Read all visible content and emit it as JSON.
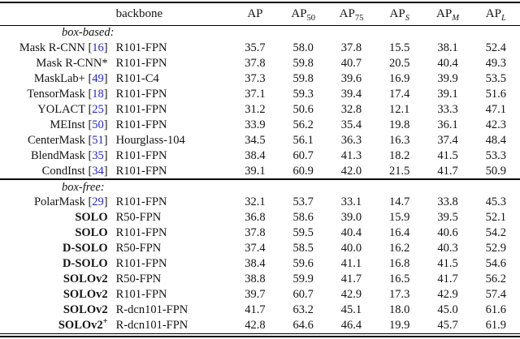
{
  "table": {
    "citation_color": "#2626cc",
    "headers": [
      {
        "label": "",
        "align": "left"
      },
      {
        "label": "backbone",
        "align": "left"
      },
      {
        "base": "AP",
        "sub": "",
        "italic_sub": false
      },
      {
        "base": "AP",
        "sub": "50",
        "italic_sub": false
      },
      {
        "base": "AP",
        "sub": "75",
        "italic_sub": false
      },
      {
        "base": "AP",
        "sub": "S",
        "italic_sub": true
      },
      {
        "base": "AP",
        "sub": "M",
        "italic_sub": true
      },
      {
        "base": "AP",
        "sub": "L",
        "italic_sub": true
      }
    ],
    "sections": [
      {
        "label": "box-based:",
        "rows": [
          {
            "method": "Mask R-CNN",
            "cite": "16",
            "sup": null,
            "bold": false,
            "backbone": "R101-FPN",
            "values": [
              "35.7",
              "58.0",
              "37.8",
              "15.5",
              "38.1",
              "52.4"
            ]
          },
          {
            "method": "Mask R-CNN*",
            "cite": null,
            "sup": null,
            "bold": false,
            "backbone": "R101-FPN",
            "values": [
              "37.8",
              "59.8",
              "40.7",
              "20.5",
              "40.4",
              "49.3"
            ]
          },
          {
            "method": "MaskLab+",
            "cite": "49",
            "sup": null,
            "bold": false,
            "backbone": "R101-C4",
            "values": [
              "37.3",
              "59.8",
              "39.6",
              "16.9",
              "39.9",
              "53.5"
            ]
          },
          {
            "method": "TensorMask",
            "cite": "18",
            "sup": null,
            "bold": false,
            "backbone": "R101-FPN",
            "values": [
              "37.1",
              "59.3",
              "39.4",
              "17.4",
              "39.1",
              "51.6"
            ]
          },
          {
            "method": "YOLACT",
            "cite": "25",
            "sup": null,
            "bold": false,
            "backbone": "R101-FPN",
            "values": [
              "31.2",
              "50.6",
              "32.8",
              "12.1",
              "33.3",
              "47.1"
            ]
          },
          {
            "method": "MEInst",
            "cite": "50",
            "sup": null,
            "bold": false,
            "backbone": "R101-FPN",
            "values": [
              "33.9",
              "56.2",
              "35.4",
              "19.8",
              "36.1",
              "42.3"
            ]
          },
          {
            "method": "CenterMask",
            "cite": "51",
            "sup": null,
            "bold": false,
            "backbone": "Hourglass-104",
            "values": [
              "34.5",
              "56.1",
              "36.3",
              "16.3",
              "37.4",
              "48.4"
            ]
          },
          {
            "method": "BlendMask",
            "cite": "35",
            "sup": null,
            "bold": false,
            "backbone": "R101-FPN",
            "values": [
              "38.4",
              "60.7",
              "41.3",
              "18.2",
              "41.5",
              "53.3"
            ]
          },
          {
            "method": "CondInst",
            "cite": "34",
            "sup": null,
            "bold": false,
            "backbone": "R101-FPN",
            "values": [
              "39.1",
              "60.9",
              "42.0",
              "21.5",
              "41.7",
              "50.9"
            ]
          }
        ]
      },
      {
        "label": "box-free:",
        "rows": [
          {
            "method": "PolarMask",
            "cite": "29",
            "sup": null,
            "bold": false,
            "backbone": "R101-FPN",
            "values": [
              "32.1",
              "53.7",
              "33.1",
              "14.7",
              "33.8",
              "45.3"
            ]
          },
          {
            "method": "SOLO",
            "cite": null,
            "sup": null,
            "bold": true,
            "backbone": "R50-FPN",
            "values": [
              "36.8",
              "58.6",
              "39.0",
              "15.9",
              "39.5",
              "52.1"
            ]
          },
          {
            "method": "SOLO",
            "cite": null,
            "sup": null,
            "bold": true,
            "backbone": "R101-FPN",
            "values": [
              "37.8",
              "59.5",
              "40.4",
              "16.4",
              "40.6",
              "54.2"
            ]
          },
          {
            "method": "D-SOLO",
            "cite": null,
            "sup": null,
            "bold": true,
            "backbone": "R50-FPN",
            "values": [
              "37.4",
              "58.5",
              "40.0",
              "16.2",
              "40.3",
              "52.9"
            ]
          },
          {
            "method": "D-SOLO",
            "cite": null,
            "sup": null,
            "bold": true,
            "backbone": "R101-FPN",
            "values": [
              "38.4",
              "59.6",
              "41.1",
              "16.8",
              "41.5",
              "54.6"
            ]
          },
          {
            "method": "SOLOv2",
            "cite": null,
            "sup": null,
            "bold": true,
            "backbone": "R50-FPN",
            "values": [
              "38.8",
              "59.9",
              "41.7",
              "16.5",
              "41.7",
              "56.2"
            ]
          },
          {
            "method": "SOLOv2",
            "cite": null,
            "sup": null,
            "bold": true,
            "backbone": "R101-FPN",
            "values": [
              "39.7",
              "60.7",
              "42.9",
              "17.3",
              "42.9",
              "57.4"
            ]
          },
          {
            "method": "SOLOv2",
            "cite": null,
            "sup": null,
            "bold": true,
            "backbone": "R-dcn101-FPN",
            "values": [
              "41.7",
              "63.2",
              "45.1",
              "18.0",
              "45.0",
              "61.6"
            ]
          },
          {
            "method": "SOLOv2",
            "cite": null,
            "sup": "+",
            "bold": true,
            "backbone": "R-dcn101-FPN",
            "values": [
              "42.8",
              "64.6",
              "46.4",
              "19.9",
              "45.7",
              "61.9"
            ]
          }
        ]
      }
    ]
  }
}
